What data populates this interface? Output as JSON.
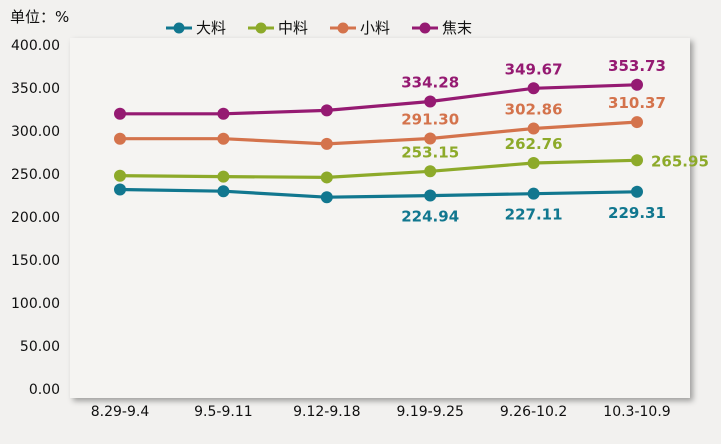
{
  "chart_data": {
    "type": "line",
    "unit_label": "单位：%",
    "categories": [
      "8.29-9.4",
      "9.5-9.11",
      "9.12-9.18",
      "9.19-9.25",
      "9.26-10.2",
      "10.3-10.9"
    ],
    "ylim": [
      0,
      400
    ],
    "yticks": [
      "0.00",
      "50.00",
      "100.00",
      "150.00",
      "200.00",
      "250.00",
      "300.00",
      "350.00",
      "400.00"
    ],
    "grid": false,
    "legend_position": "top",
    "series": [
      {
        "name": "大料",
        "color": "#11778f",
        "values": [
          232,
          230,
          223,
          224.94,
          227.11,
          229.31
        ],
        "labels": [
          "",
          "",
          "",
          "224.94",
          "227.11",
          "229.31"
        ],
        "label_pos": "below"
      },
      {
        "name": "中料",
        "color": "#8daa2a",
        "values": [
          248,
          247,
          246,
          253.15,
          262.76,
          265.95
        ],
        "labels": [
          "",
          "",
          "",
          "253.15",
          "262.76",
          "265.95"
        ],
        "label_pos": "above"
      },
      {
        "name": "小料",
        "color": "#d4734c",
        "values": [
          291,
          291,
          285,
          291.3,
          302.86,
          310.37
        ],
        "labels": [
          "",
          "",
          "",
          "291.30",
          "302.86",
          "310.37"
        ],
        "label_pos": "above"
      },
      {
        "name": "焦末",
        "color": "#951a72",
        "values": [
          320,
          320,
          324,
          334.28,
          349.67,
          353.73
        ],
        "labels": [
          "",
          "",
          "",
          "334.28",
          "349.67",
          "353.73"
        ],
        "label_pos": "above"
      }
    ]
  }
}
